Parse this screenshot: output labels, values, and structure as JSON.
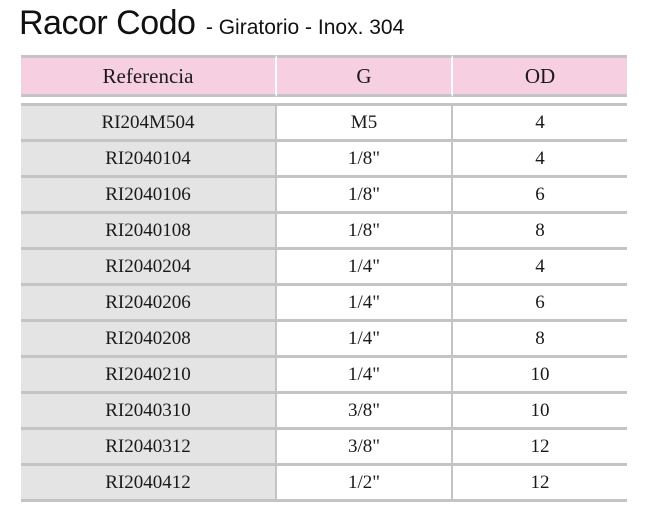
{
  "title": {
    "main": "Racor Codo",
    "subtitle": "- Giratorio - Inox. 304"
  },
  "table": {
    "headers": [
      "Referencia",
      "G",
      "OD"
    ],
    "rows": [
      [
        "RI204M504",
        "M5",
        "4"
      ],
      [
        "RI2040104",
        "1/8\"",
        "4"
      ],
      [
        "RI2040106",
        "1/8\"",
        "6"
      ],
      [
        "RI2040108",
        "1/8\"",
        "8"
      ],
      [
        "RI2040204",
        "1/4\"",
        "4"
      ],
      [
        "RI2040206",
        "1/4\"",
        "6"
      ],
      [
        "RI2040208",
        "1/4\"",
        "8"
      ],
      [
        "RI2040210",
        "1/4\"",
        "10"
      ],
      [
        "RI2040310",
        "3/8\"",
        "10"
      ],
      [
        "RI2040312",
        "3/8\"",
        "12"
      ],
      [
        "RI2040412",
        "1/2\"",
        "12"
      ]
    ]
  },
  "colors": {
    "header_background": "#f6cfe1",
    "reference_column_background": "#e4e4e4",
    "rule": "#c4c4c4"
  }
}
